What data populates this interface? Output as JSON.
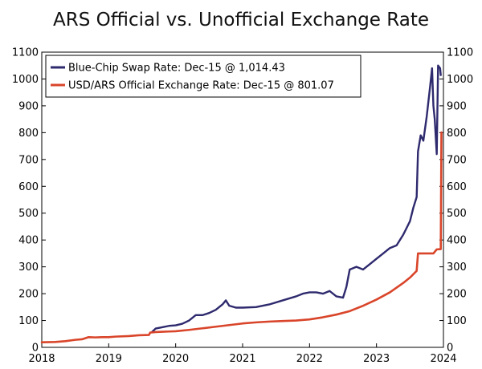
{
  "chart_data": {
    "type": "line",
    "title": "ARS Official vs. Unofficial Exchange Rate",
    "xlabel": "",
    "ylabel": "",
    "xlim": [
      2018,
      2024
    ],
    "ylim": [
      0,
      1100
    ],
    "x_ticks": [
      "2018",
      "2019",
      "2020",
      "2021",
      "2022",
      "2023",
      "2024"
    ],
    "y_ticks": [
      "0",
      "100",
      "200",
      "300",
      "400",
      "500",
      "600",
      "700",
      "800",
      "900",
      "1000",
      "1100"
    ],
    "y_right_axis": true,
    "grid": false,
    "legend_position": "top-left",
    "series": [
      {
        "name": "Blue-Chip Swap Rate: Dec-15 @ 1,014.43",
        "color": "#2e2a6e",
        "x": [
          2019.65,
          2019.7,
          2019.8,
          2019.9,
          2020.0,
          2020.1,
          2020.2,
          2020.3,
          2020.4,
          2020.5,
          2020.6,
          2020.7,
          2020.75,
          2020.8,
          2020.9,
          2021.0,
          2021.2,
          2021.4,
          2021.6,
          2021.8,
          2021.9,
          2022.0,
          2022.1,
          2022.2,
          2022.3,
          2022.4,
          2022.5,
          2022.55,
          2022.6,
          2022.7,
          2022.8,
          2022.9,
          2023.0,
          2023.1,
          2023.2,
          2023.3,
          2023.4,
          2023.5,
          2023.55,
          2023.6,
          2023.62,
          2023.66,
          2023.7,
          2023.75,
          2023.8,
          2023.83,
          2023.85,
          2023.87,
          2023.9,
          2023.92,
          2023.95,
          2023.96
        ],
        "values": [
          58,
          70,
          75,
          80,
          82,
          88,
          100,
          120,
          120,
          128,
          140,
          160,
          175,
          155,
          148,
          148,
          150,
          160,
          175,
          190,
          200,
          205,
          205,
          200,
          210,
          190,
          185,
          225,
          290,
          300,
          290,
          310,
          330,
          350,
          370,
          380,
          420,
          470,
          520,
          560,
          730,
          790,
          770,
          860,
          970,
          1040,
          900,
          850,
          720,
          1050,
          1040,
          1014.43
        ]
      },
      {
        "name": "USD/ARS Official Exchange Rate: Dec-15 @ 801.07",
        "color": "#d9452a",
        "x": [
          2018.0,
          2018.2,
          2018.35,
          2018.5,
          2018.6,
          2018.7,
          2018.8,
          2018.9,
          2019.0,
          2019.1,
          2019.3,
          2019.45,
          2019.6,
          2019.62,
          2019.7,
          2019.8,
          2019.9,
          2020.0,
          2020.2,
          2020.4,
          2020.6,
          2020.8,
          2021.0,
          2021.2,
          2021.4,
          2021.6,
          2021.8,
          2022.0,
          2022.2,
          2022.4,
          2022.6,
          2022.8,
          2023.0,
          2023.2,
          2023.4,
          2023.5,
          2023.6,
          2023.62,
          2023.75,
          2023.85,
          2023.9,
          2023.96,
          2023.97
        ],
        "values": [
          19,
          20,
          23,
          28,
          30,
          38,
          37,
          38,
          38,
          40,
          42,
          45,
          46,
          55,
          57,
          58,
          59,
          60,
          65,
          71,
          77,
          83,
          89,
          93,
          96,
          98,
          100,
          104,
          112,
          122,
          135,
          155,
          178,
          205,
          240,
          260,
          285,
          350,
          350,
          350,
          365,
          366,
          801.07
        ]
      }
    ]
  }
}
